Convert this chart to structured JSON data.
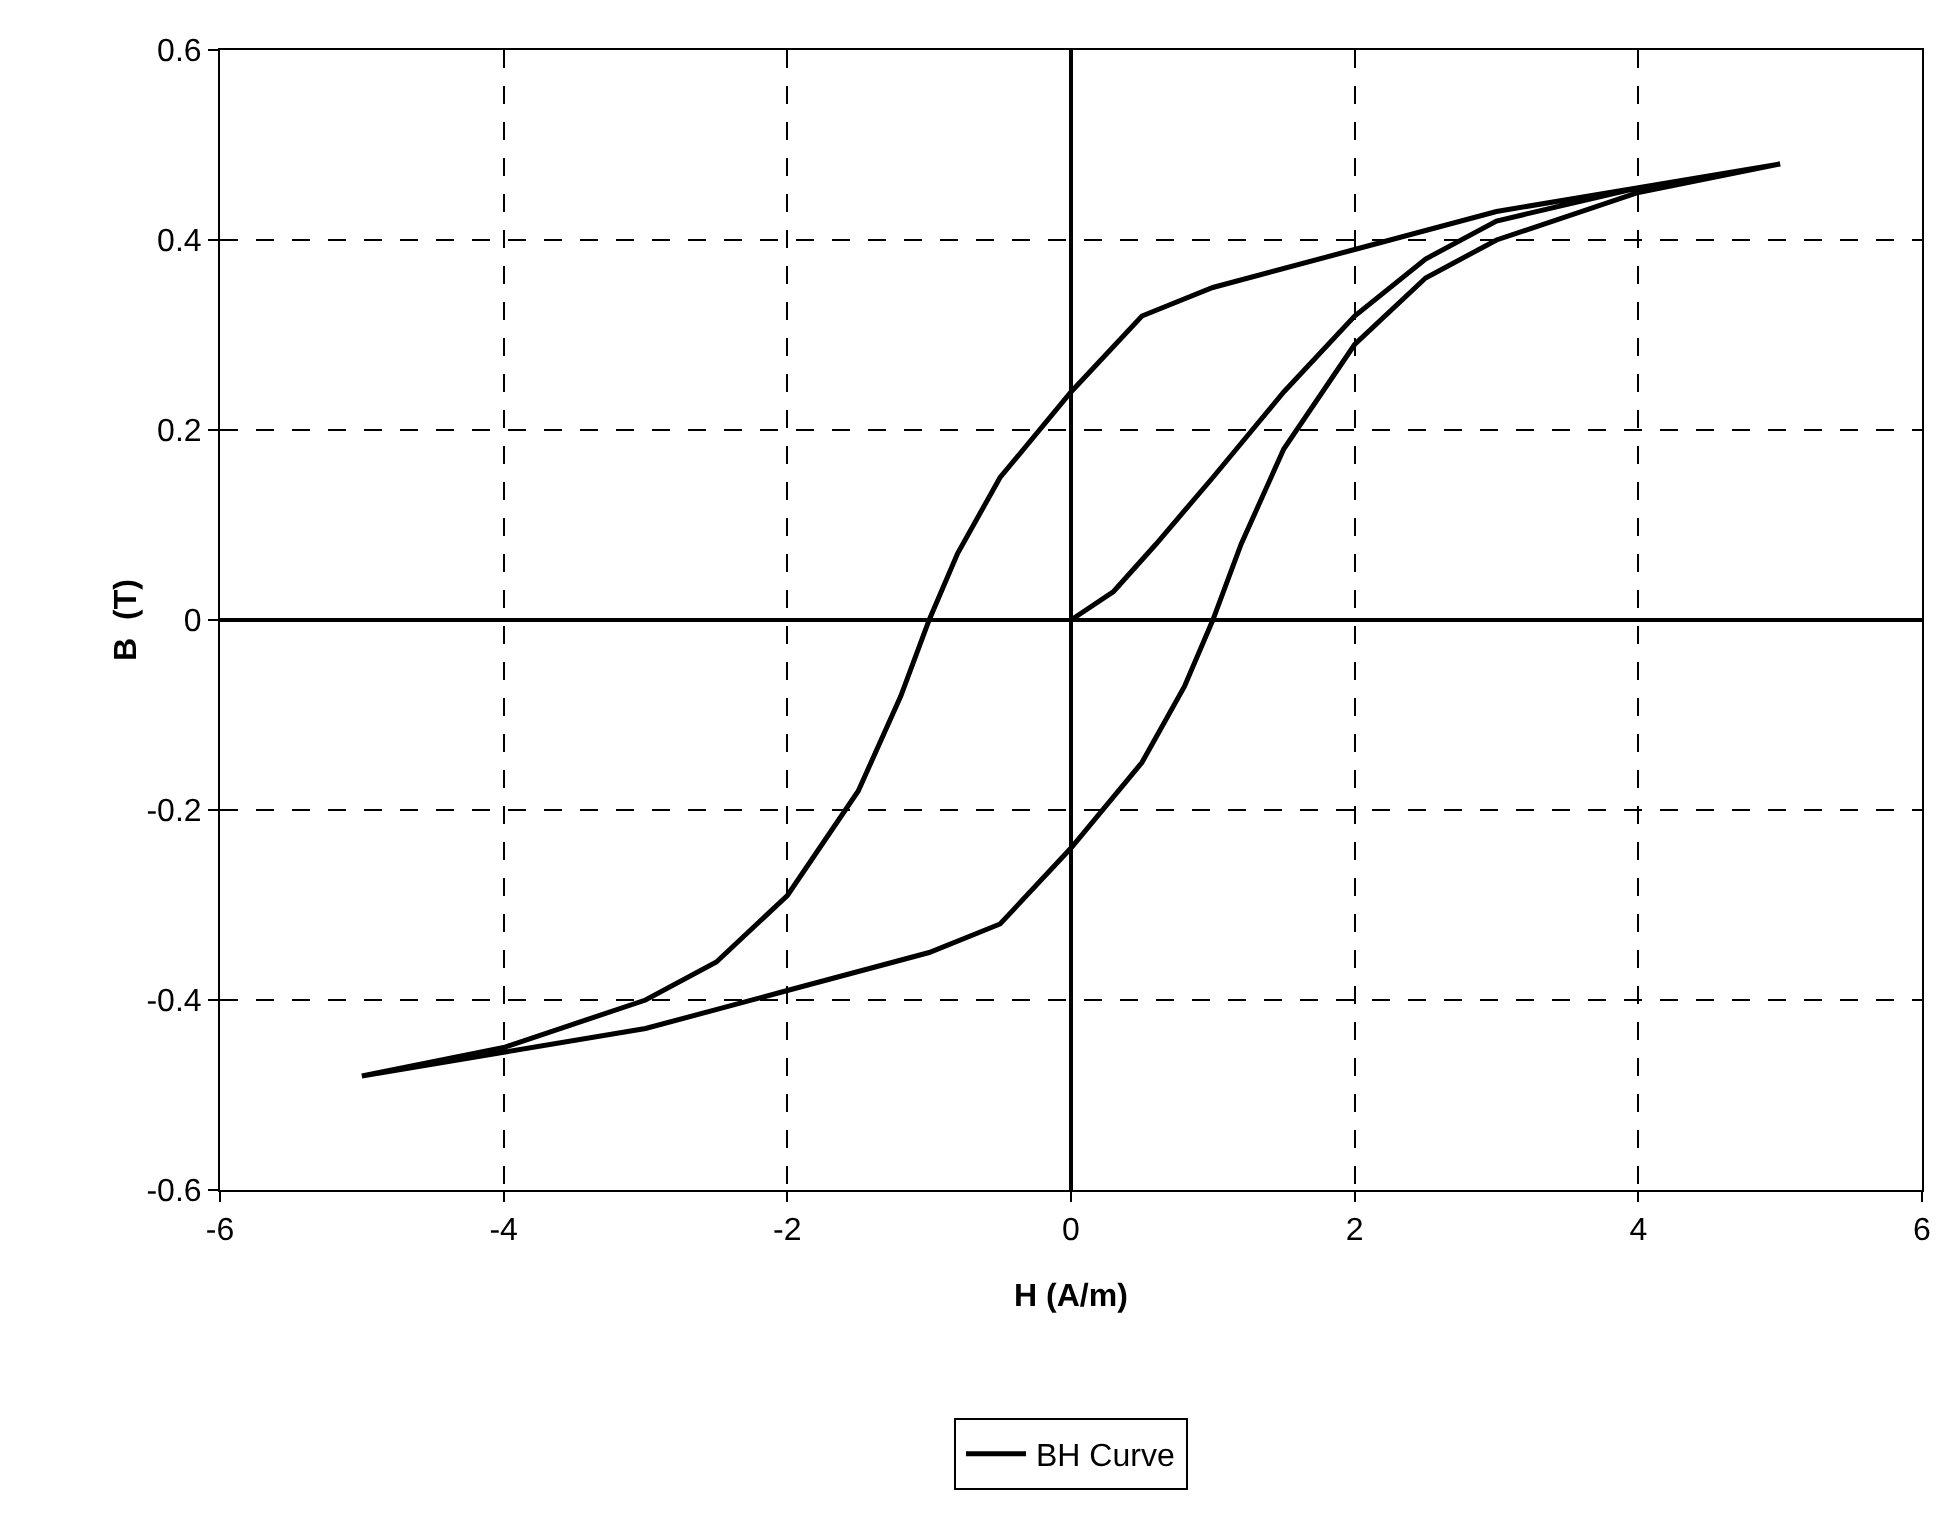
{
  "chart_data": {
    "type": "line",
    "xlabel": "H (A/m)",
    "ylabel": "B  (T)",
    "x": [
      0,
      0.3,
      0.6,
      1,
      1.5,
      2,
      2.5,
      3,
      4,
      5,
      4,
      3,
      2,
      1,
      0.5,
      0,
      -0.5,
      -0.8,
      -1,
      -1.2,
      -1.5,
      -2,
      -2.5,
      -3,
      -4,
      -5,
      -4,
      -3,
      -2,
      -1,
      -0.5,
      0,
      0.5,
      0.8,
      1,
      1.2,
      1.5,
      2,
      2.5,
      3,
      4,
      5
    ],
    "series": [
      {
        "name": "BH Curve",
        "color": "#000000",
        "values": [
          0,
          0.03,
          0.08,
          0.15,
          0.24,
          0.32,
          0.38,
          0.42,
          0.455,
          0.48,
          0.455,
          0.43,
          0.39,
          0.35,
          0.32,
          0.24,
          0.15,
          0.07,
          0,
          -0.08,
          -0.18,
          -0.29,
          -0.36,
          -0.4,
          -0.45,
          -0.48,
          -0.455,
          -0.43,
          -0.39,
          -0.35,
          -0.32,
          -0.24,
          -0.15,
          -0.07,
          0,
          0.08,
          0.18,
          0.29,
          0.36,
          0.4,
          0.45,
          0.48
        ]
      }
    ],
    "xlim": [
      -6,
      6
    ],
    "xticks": [
      -6,
      -4,
      -2,
      0,
      2,
      4,
      6
    ],
    "ylim": [
      -0.6,
      0.6
    ],
    "yticks": [
      -0.6,
      -0.4,
      -0.2,
      0,
      0.2,
      0.4,
      0.6
    ],
    "grid": true,
    "legend": "bottom",
    "marker": "none",
    "line_style": "solid"
  }
}
